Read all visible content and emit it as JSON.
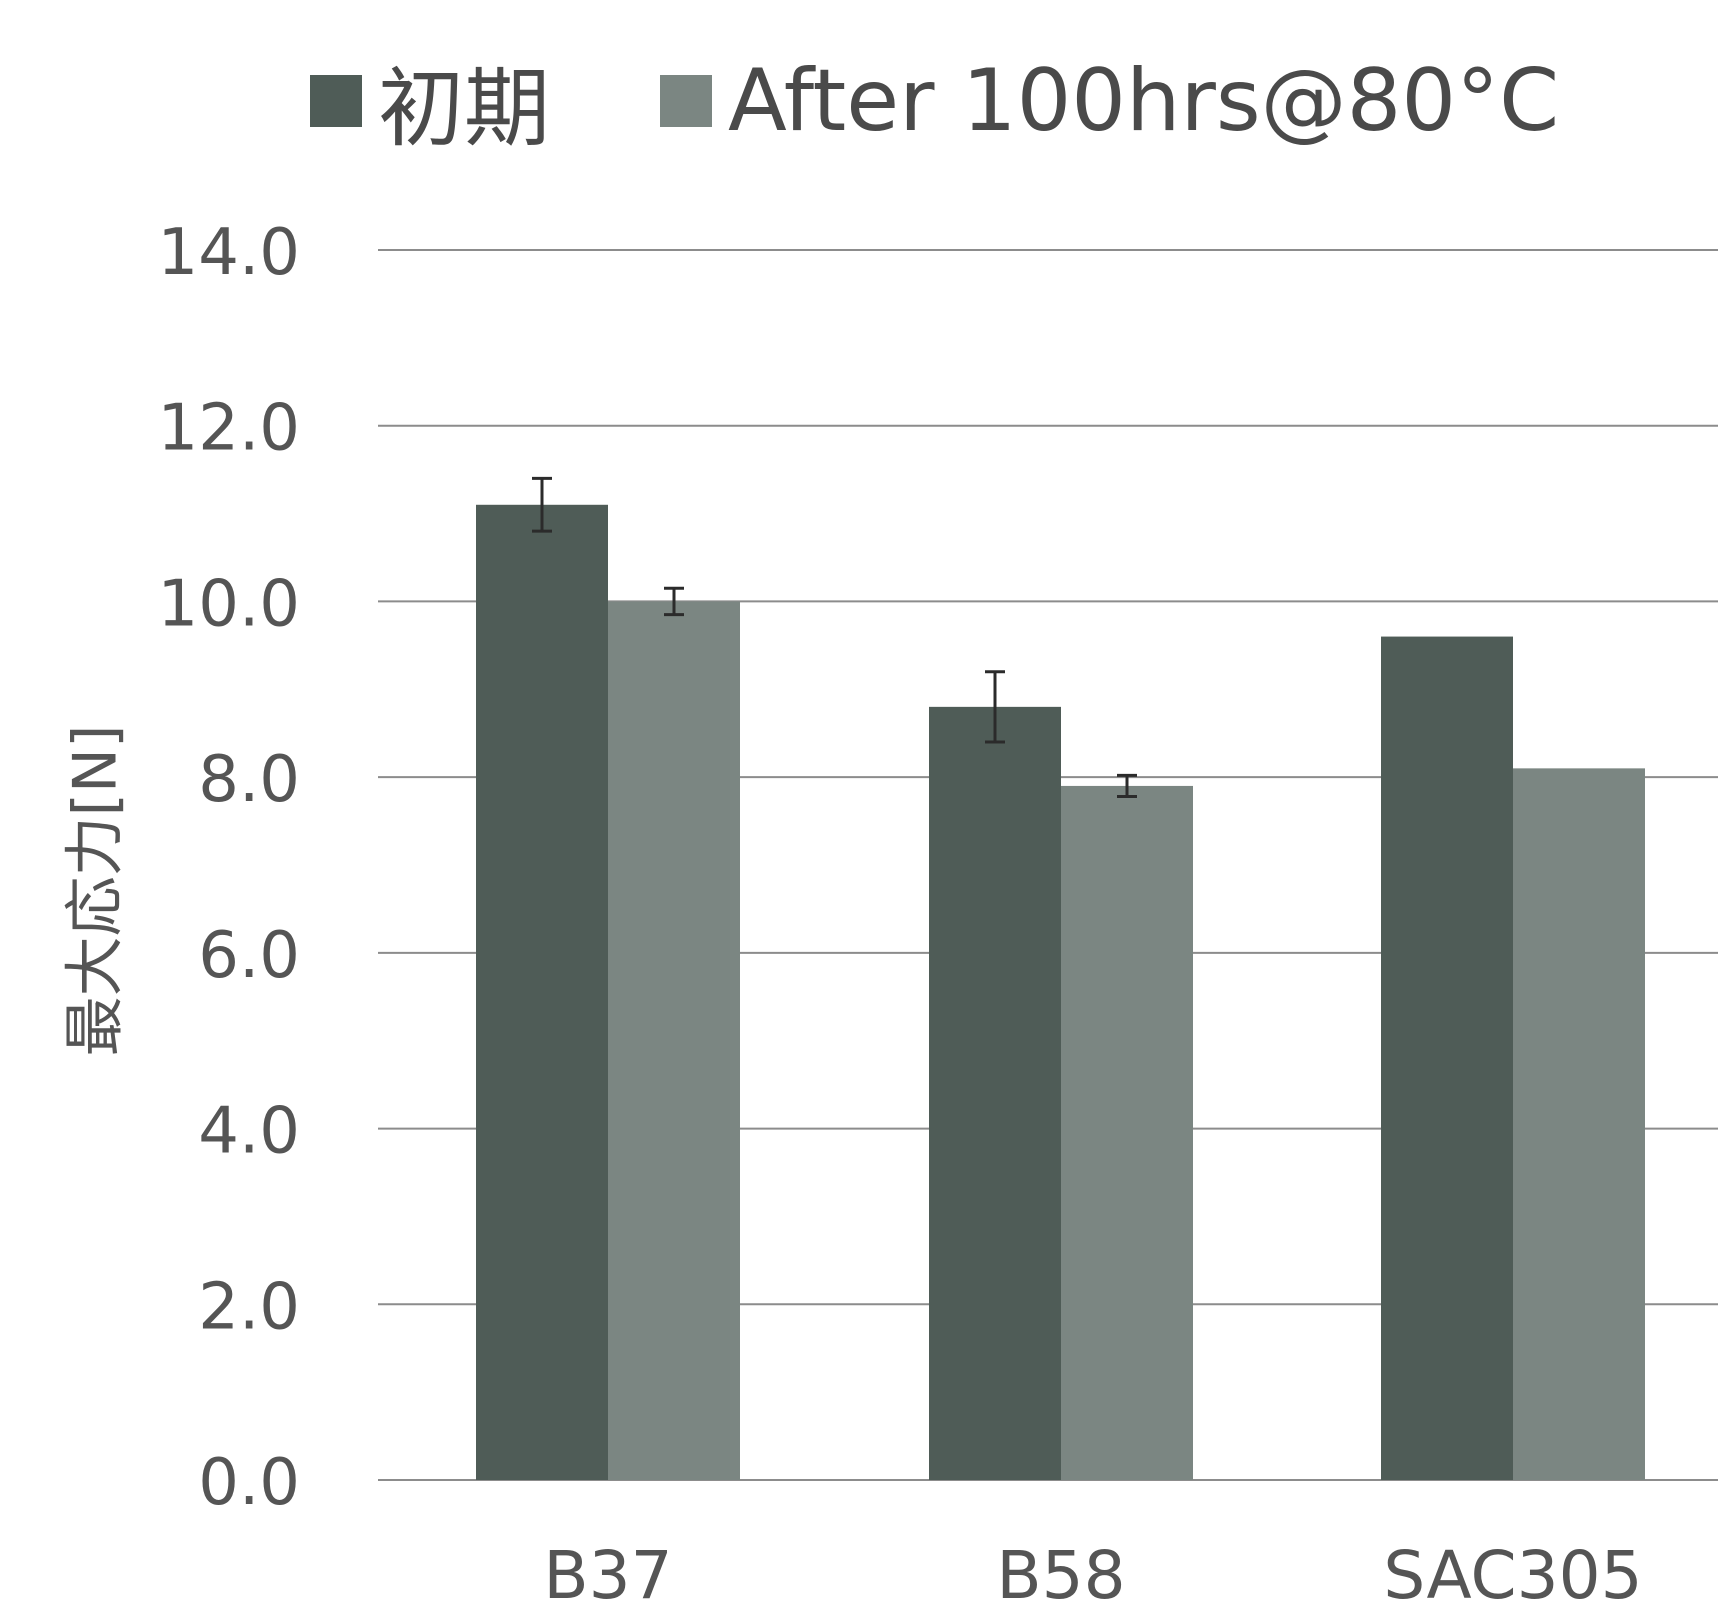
{
  "chart_data": {
    "type": "bar",
    "categories": [
      "B37",
      "B58",
      "SAC305"
    ],
    "series": [
      {
        "name": "初期",
        "values": [
          11.1,
          8.8,
          9.6
        ],
        "errors": [
          0.3,
          0.4,
          null
        ],
        "color": "#4f5c57"
      },
      {
        "name": "After 100hrs@80°C",
        "values": [
          10.0,
          7.9,
          8.1
        ],
        "errors": [
          0.15,
          0.12,
          null
        ],
        "color": "#7b8682"
      }
    ],
    "ylabel": "最大応力[N]",
    "xlabel": "",
    "ylim": [
      0,
      14
    ],
    "yticks": [
      "0.0",
      "2.0",
      "4.0",
      "6.0",
      "8.0",
      "10.0",
      "12.0",
      "14.0"
    ],
    "grid": true,
    "legend": "top"
  }
}
